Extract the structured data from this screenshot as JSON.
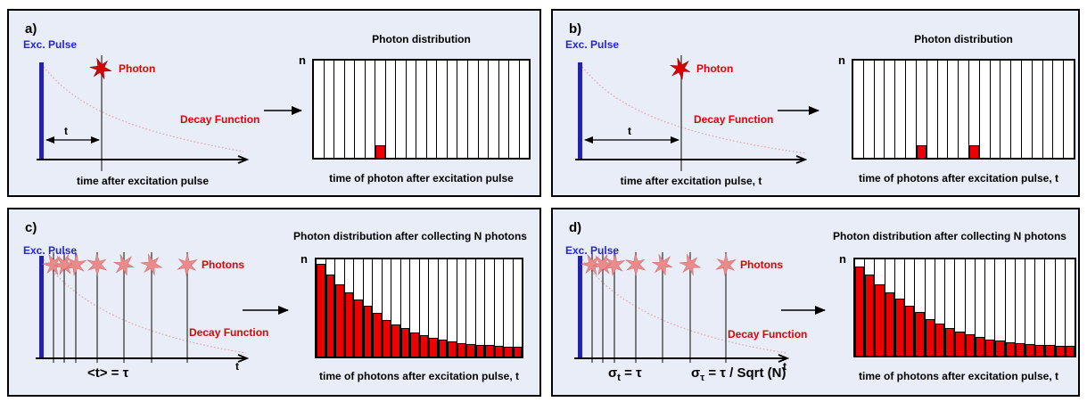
{
  "figure": {
    "description": "Principle of time-correlated single photon counting, four panels"
  },
  "colors": {
    "panel_bg": "#e8edf8",
    "border": "#000000",
    "blue_text": "#2626cc",
    "pulse_blue": "#2222aa",
    "red_text": "#e60000",
    "bar_red": "#ee0000",
    "decay_pink": "#e2a0ac",
    "star_red": "#dd0000",
    "star_light": "#ea8a8a"
  },
  "panels": {
    "a": {
      "letter": "a)",
      "exc_pulse_label": "Exc. Pulse",
      "photon_label": "Photon",
      "decay_label": "Decay Function",
      "t_label": "t",
      "axis_caption": "time after excitation pulse",
      "hist_title": "Photon distribution",
      "n_label": "n",
      "hist_caption": "time of photon after excitation pulse",
      "histogram": {
        "type": "bar",
        "bins": 21,
        "ylabel": "n",
        "unit": "fraction of full bin height",
        "values": [
          0,
          0,
          0,
          0,
          0,
          0,
          0.13,
          0,
          0,
          0,
          0,
          0,
          0,
          0,
          0,
          0,
          0,
          0,
          0,
          0,
          0
        ]
      }
    },
    "b": {
      "letter": "b)",
      "exc_pulse_label": "Exc. Pulse",
      "photon_label": "Photon",
      "decay_label": "Decay Function",
      "t_label": "t",
      "axis_caption": "time after excitation pulse, t",
      "hist_title": "Photon distribution",
      "n_label": "n",
      "hist_caption": "time of photons after excitation pulse, t",
      "histogram": {
        "type": "bar",
        "bins": 21,
        "ylabel": "n",
        "unit": "fraction of full bin height",
        "values": [
          0,
          0,
          0,
          0,
          0,
          0,
          0.13,
          0,
          0,
          0,
          0,
          0.13,
          0,
          0,
          0,
          0,
          0,
          0,
          0,
          0,
          0
        ]
      }
    },
    "c": {
      "letter": "c)",
      "exc_pulse_label": "Exc. Pulse",
      "photons_label": "Photons",
      "decay_label": "Decay Function",
      "t_axis_label": "t",
      "formula": "<t> = τ",
      "hist_title": "Photon distribution after collecting N photons",
      "n_label": "n",
      "hist_caption": "time of photons after excitation pulse, t",
      "histogram": {
        "type": "bar",
        "bins": 22,
        "ylabel": "n",
        "unit": "fraction of full bin height",
        "values": [
          0.95,
          0.84,
          0.74,
          0.66,
          0.59,
          0.52,
          0.45,
          0.38,
          0.33,
          0.29,
          0.25,
          0.22,
          0.19,
          0.17,
          0.155,
          0.14,
          0.13,
          0.12,
          0.115,
          0.11,
          0.105,
          0.1
        ]
      }
    },
    "d": {
      "letter": "d)",
      "exc_pulse_label": "Exc. Pulse",
      "photons_label": "Photons",
      "decay_label": "Decay Function",
      "t_axis_label": "t",
      "formula1": {
        "sym": "σ",
        "sub": "t",
        "rest": "= τ"
      },
      "formula2": {
        "sym": "σ",
        "sub": "τ",
        "rest": "= τ / Sqrt (N)"
      },
      "hist_title": "Photon distribution after collecting N photons",
      "n_label": "n",
      "hist_caption": "time of photons after excitation pulse, t",
      "histogram": {
        "type": "bar",
        "bins": 22,
        "ylabel": "n",
        "unit": "fraction of full bin height",
        "values": [
          0.93,
          0.84,
          0.74,
          0.66,
          0.59,
          0.52,
          0.45,
          0.38,
          0.33,
          0.29,
          0.25,
          0.22,
          0.19,
          0.17,
          0.155,
          0.14,
          0.13,
          0.12,
          0.115,
          0.11,
          0.105,
          0.1
        ]
      }
    }
  }
}
